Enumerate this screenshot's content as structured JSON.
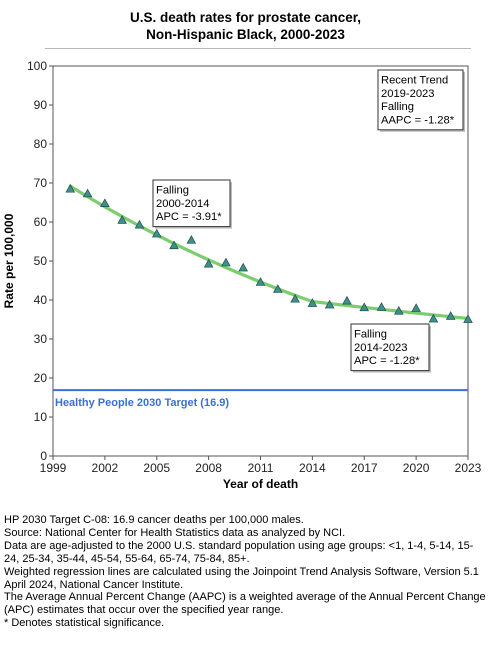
{
  "chart_data": {
    "type": "line",
    "title_lines": [
      "U.S. death rates for prostate cancer,",
      "Non-Hispanic Black,  2000-2023"
    ],
    "xlabel": "Year of death",
    "ylabel": "Rate per 100,000",
    "xlim": [
      1999,
      2023
    ],
    "ylim": [
      0,
      100
    ],
    "x_ticks": [
      1999,
      2002,
      2005,
      2008,
      2011,
      2014,
      2017,
      2020,
      2023
    ],
    "y_ticks": [
      0,
      10,
      20,
      30,
      40,
      50,
      60,
      70,
      80,
      90,
      100
    ],
    "grid": false,
    "observed": {
      "marker": "triangle",
      "color": "#3f8f8a",
      "x": [
        2000,
        2001,
        2002,
        2003,
        2004,
        2005,
        2006,
        2007,
        2008,
        2009,
        2010,
        2011,
        2012,
        2013,
        2014,
        2015,
        2016,
        2017,
        2018,
        2019,
        2020,
        2021,
        2022,
        2023
      ],
      "y": [
        68.5,
        67.3,
        64.8,
        60.5,
        59.3,
        57.0,
        54.0,
        55.4,
        49.3,
        49.6,
        48.3,
        44.6,
        42.8,
        40.3,
        39.2,
        38.8,
        39.8,
        38.1,
        38.2,
        37.2,
        37.9,
        35.2,
        35.9,
        35.1
      ]
    },
    "trend": {
      "color": "#7ccd6e",
      "segments": [
        {
          "x": [
            2000,
            2014
          ],
          "apc_pct": -3.91,
          "start_y": 69.2
        },
        {
          "x": [
            2014,
            2023
          ],
          "apc_pct": -1.28
        }
      ]
    },
    "target": {
      "label": "Healthy People 2030 Target (16.9)",
      "value": 16.9,
      "color": "#3b6fd6"
    },
    "annotations": [
      {
        "id": "recent",
        "lines": [
          "Recent Trend",
          "2019-2023",
          "Falling",
          "AAPC = -1.28*"
        ]
      },
      {
        "id": "seg1",
        "lines": [
          "Falling",
          "2000-2014",
          "APC = -3.91*"
        ]
      },
      {
        "id": "seg2",
        "lines": [
          "Falling",
          "2014-2023",
          "APC = -1.28*"
        ]
      }
    ]
  },
  "footnotes": [
    "HP 2030 Target C-08: 16.9 cancer deaths per 100,000 males.",
    "Source: National Center for Health Statistics data as analyzed by NCI.",
    "Data are age-adjusted to the 2000 U.S. standard population using age groups: <1, 1-4, 5-14, 15-24, 25-34, 35-44, 45-54, 55-64, 65-74, 75-84, 85+.",
    "Weighted regression lines are calculated using the Joinpoint Trend Analysis Software, Version 5.1 April 2024, National Cancer Institute.",
    "The Average Annual Percent Change (AAPC) is a weighted average of the Annual Percent Change (APC) estimates that occur over the specified year range.",
    "* Denotes statistical significance."
  ]
}
